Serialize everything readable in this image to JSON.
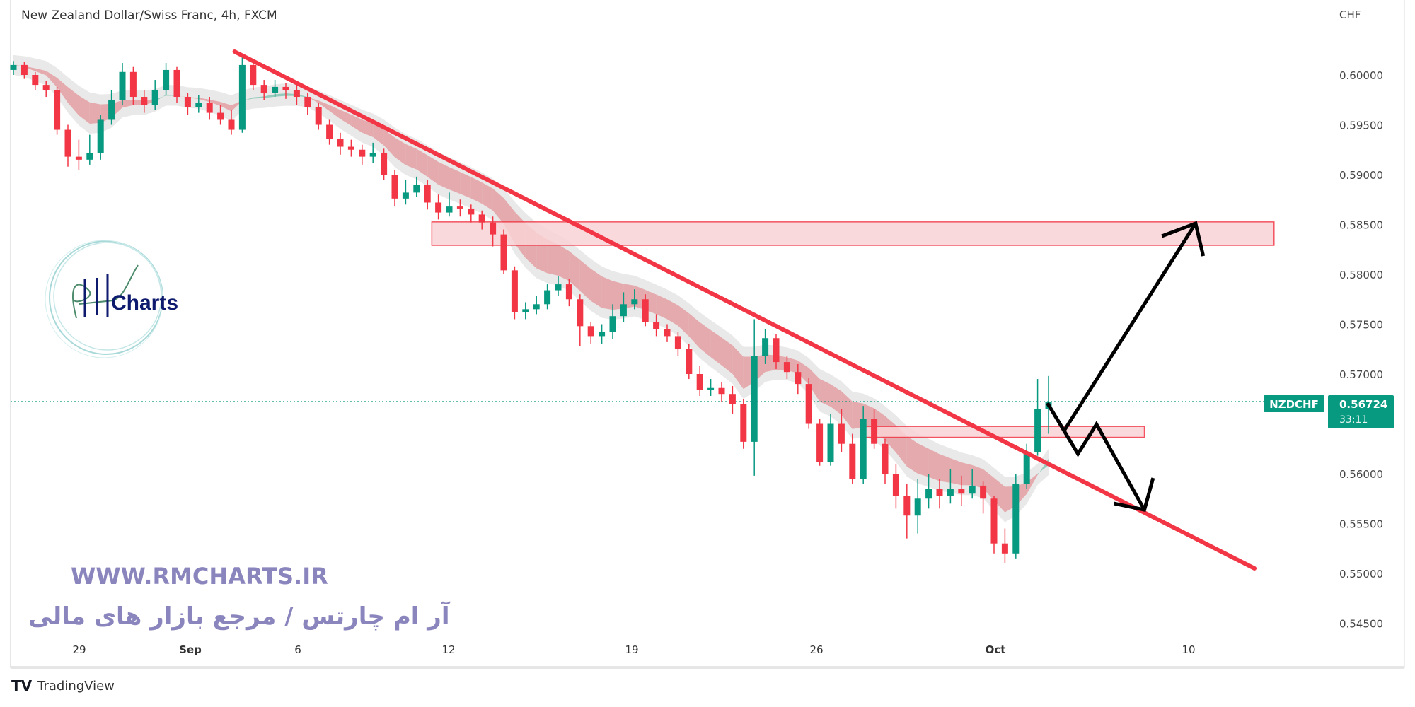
{
  "header": {
    "title": "New Zealand Dollar/Swiss Franc, 4h, FXCM"
  },
  "footer": {
    "brand": "TradingView"
  },
  "watermark": {
    "url": "WWW.RMCHARTS.IR",
    "persian": "آر ام چارتس / مرجع بازار های مالی",
    "logo_text": "RM Charts"
  },
  "colors": {
    "up": "#089981",
    "down": "#f23645",
    "trendline": "#f23645",
    "zone_fill": "#f9d3d6",
    "arrows": "#000000",
    "watermark": "#8a86bd",
    "logo_navy": "#0d1a6e",
    "logo_ring": "#a8d8d8"
  },
  "chart_data": {
    "type": "candlestick",
    "symbol": "NZDCHF",
    "interval": "4h",
    "currency": "CHF",
    "last_price": "0.56724",
    "countdown": "33:11",
    "ylim": [
      0.543,
      0.6065
    ],
    "y_ticks": [
      "0.60000",
      "0.59500",
      "0.59000",
      "0.58500",
      "0.58000",
      "0.57500",
      "0.57000",
      "0.56000",
      "0.55500",
      "0.55000",
      "0.54500"
    ],
    "x_ticks": [
      "29",
      "Sep",
      "6",
      "12",
      "19",
      "26",
      "Oct",
      "10"
    ],
    "grid": false,
    "candles_ohlc": [
      [
        0.6005,
        0.6014,
        0.6,
        0.601
      ],
      [
        0.601,
        0.6013,
        0.5996,
        0.6
      ],
      [
        0.6,
        0.6003,
        0.5985,
        0.599
      ],
      [
        0.599,
        0.5994,
        0.5978,
        0.5985
      ],
      [
        0.5985,
        0.5988,
        0.594,
        0.5945
      ],
      [
        0.5945,
        0.595,
        0.5908,
        0.5918
      ],
      [
        0.5918,
        0.5935,
        0.5905,
        0.5915
      ],
      [
        0.5915,
        0.594,
        0.591,
        0.5922
      ],
      [
        0.5922,
        0.596,
        0.5915,
        0.5955
      ],
      [
        0.5955,
        0.5985,
        0.595,
        0.5975
      ],
      [
        0.5975,
        0.6012,
        0.597,
        0.6003
      ],
      [
        0.6003,
        0.6008,
        0.597,
        0.5978
      ],
      [
        0.5978,
        0.5985,
        0.5962,
        0.597
      ],
      [
        0.597,
        0.5995,
        0.5965,
        0.5985
      ],
      [
        0.5985,
        0.6012,
        0.598,
        0.6005
      ],
      [
        0.6005,
        0.6008,
        0.5972,
        0.5978
      ],
      [
        0.5978,
        0.5982,
        0.596,
        0.5968
      ],
      [
        0.5968,
        0.598,
        0.5962,
        0.5972
      ],
      [
        0.5972,
        0.5978,
        0.5955,
        0.5962
      ],
      [
        0.5962,
        0.597,
        0.595,
        0.5955
      ],
      [
        0.5955,
        0.5965,
        0.594,
        0.5945
      ],
      [
        0.5945,
        0.602,
        0.5942,
        0.601
      ],
      [
        0.601,
        0.6015,
        0.5985,
        0.599
      ],
      [
        0.599,
        0.5995,
        0.5975,
        0.5982
      ],
      [
        0.5982,
        0.5995,
        0.5978,
        0.5988
      ],
      [
        0.5988,
        0.5992,
        0.5976,
        0.5985
      ],
      [
        0.5985,
        0.599,
        0.597,
        0.5978
      ],
      [
        0.5978,
        0.5982,
        0.596,
        0.5968
      ],
      [
        0.5968,
        0.5972,
        0.5945,
        0.595
      ],
      [
        0.595,
        0.5955,
        0.593,
        0.5936
      ],
      [
        0.5936,
        0.5942,
        0.592,
        0.5928
      ],
      [
        0.5928,
        0.5935,
        0.5918,
        0.5925
      ],
      [
        0.5925,
        0.593,
        0.591,
        0.5918
      ],
      [
        0.5918,
        0.5932,
        0.5912,
        0.5922
      ],
      [
        0.5922,
        0.5926,
        0.5895,
        0.59
      ],
      [
        0.59,
        0.5905,
        0.5868,
        0.5876
      ],
      [
        0.5876,
        0.5895,
        0.587,
        0.5882
      ],
      [
        0.5882,
        0.5898,
        0.5878,
        0.589
      ],
      [
        0.589,
        0.5895,
        0.5865,
        0.5872
      ],
      [
        0.5872,
        0.588,
        0.5855,
        0.5862
      ],
      [
        0.5862,
        0.5882,
        0.5858,
        0.5868
      ],
      [
        0.5868,
        0.5875,
        0.5858,
        0.5866
      ],
      [
        0.5866,
        0.587,
        0.5852,
        0.586
      ],
      [
        0.586,
        0.5864,
        0.5845,
        0.5852
      ],
      [
        0.5852,
        0.5858,
        0.5828,
        0.584
      ],
      [
        0.584,
        0.5845,
        0.58,
        0.5804
      ],
      [
        0.5804,
        0.5808,
        0.5755,
        0.5762
      ],
      [
        0.5762,
        0.5772,
        0.5755,
        0.5765
      ],
      [
        0.5765,
        0.5778,
        0.576,
        0.577
      ],
      [
        0.577,
        0.579,
        0.5765,
        0.5784
      ],
      [
        0.5784,
        0.5798,
        0.5778,
        0.579
      ],
      [
        0.579,
        0.5795,
        0.5768,
        0.5775
      ],
      [
        0.5775,
        0.578,
        0.5728,
        0.5748
      ],
      [
        0.5748,
        0.5752,
        0.573,
        0.5738
      ],
      [
        0.5738,
        0.575,
        0.573,
        0.5742
      ],
      [
        0.5742,
        0.577,
        0.5735,
        0.5758
      ],
      [
        0.5758,
        0.5782,
        0.5752,
        0.577
      ],
      [
        0.577,
        0.5785,
        0.5765,
        0.5775
      ],
      [
        0.5775,
        0.578,
        0.5748,
        0.5752
      ],
      [
        0.5752,
        0.576,
        0.5738,
        0.5745
      ],
      [
        0.5745,
        0.575,
        0.5732,
        0.5738
      ],
      [
        0.5738,
        0.5742,
        0.5718,
        0.5725
      ],
      [
        0.5725,
        0.573,
        0.5695,
        0.57
      ],
      [
        0.57,
        0.5708,
        0.5678,
        0.5684
      ],
      [
        0.5684,
        0.5695,
        0.5678,
        0.5686
      ],
      [
        0.5686,
        0.5692,
        0.5672,
        0.568
      ],
      [
        0.568,
        0.5688,
        0.566,
        0.567
      ],
      [
        0.567,
        0.5675,
        0.5625,
        0.5632
      ],
      [
        0.5632,
        0.5755,
        0.5598,
        0.5718
      ],
      [
        0.5718,
        0.5745,
        0.571,
        0.5736
      ],
      [
        0.5736,
        0.574,
        0.5705,
        0.5712
      ],
      [
        0.5712,
        0.5718,
        0.5695,
        0.5702
      ],
      [
        0.5702,
        0.571,
        0.568,
        0.569
      ],
      [
        0.569,
        0.5696,
        0.5645,
        0.565
      ],
      [
        0.565,
        0.5655,
        0.5608,
        0.5612
      ],
      [
        0.5612,
        0.566,
        0.5608,
        0.565
      ],
      [
        0.565,
        0.5665,
        0.5622,
        0.563
      ],
      [
        0.563,
        0.564,
        0.559,
        0.5595
      ],
      [
        0.5595,
        0.5668,
        0.559,
        0.5655
      ],
      [
        0.5655,
        0.5665,
        0.5625,
        0.563
      ],
      [
        0.563,
        0.5635,
        0.559,
        0.56
      ],
      [
        0.56,
        0.561,
        0.5565,
        0.5578
      ],
      [
        0.5578,
        0.559,
        0.5535,
        0.5558
      ],
      [
        0.5558,
        0.5595,
        0.554,
        0.5575
      ],
      [
        0.5575,
        0.56,
        0.5565,
        0.5585
      ],
      [
        0.5585,
        0.5595,
        0.5565,
        0.5578
      ],
      [
        0.5578,
        0.5605,
        0.557,
        0.5585
      ],
      [
        0.5585,
        0.5598,
        0.5568,
        0.558
      ],
      [
        0.558,
        0.5605,
        0.5575,
        0.5588
      ],
      [
        0.5588,
        0.5592,
        0.556,
        0.5575
      ],
      [
        0.5575,
        0.5578,
        0.552,
        0.553
      ],
      [
        0.553,
        0.5545,
        0.551,
        0.552
      ],
      [
        0.552,
        0.56,
        0.5515,
        0.559
      ],
      [
        0.559,
        0.563,
        0.5585,
        0.5622
      ],
      [
        0.5622,
        0.5695,
        0.5618,
        0.5665
      ],
      [
        0.5665,
        0.5698,
        0.564,
        0.5672
      ]
    ],
    "drawings": {
      "trendline": [
        [
          20.3,
          0.60234
        ],
        [
          113.9,
          0.5505
        ]
      ],
      "zones": [
        {
          "from": 38.4,
          "to": 115.7,
          "top": 0.58526,
          "bottom": 0.58291
        },
        {
          "from": 77.9,
          "to": 103.8,
          "top": 0.56474,
          "bottom": 0.56365
        }
      ],
      "arrow_up": {
        "path": [
          [
            96.4,
            0.56426
          ],
          [
            108.5,
            0.58511
          ]
        ],
        "head": [
          [
            105.4,
            0.58383
          ],
          [
            108.5,
            0.58511
          ],
          [
            109.2,
            0.58184
          ]
        ]
      },
      "arrow_down": {
        "path": [
          [
            94.9,
            0.56709
          ],
          [
            97.7,
            0.56199
          ],
          [
            99.4,
            0.56496
          ],
          [
            103.8,
            0.55638
          ]
        ],
        "head": [
          [
            101.0,
            0.55702
          ],
          [
            103.8,
            0.55638
          ],
          [
            104.6,
            0.55957
          ]
        ]
      }
    }
  }
}
